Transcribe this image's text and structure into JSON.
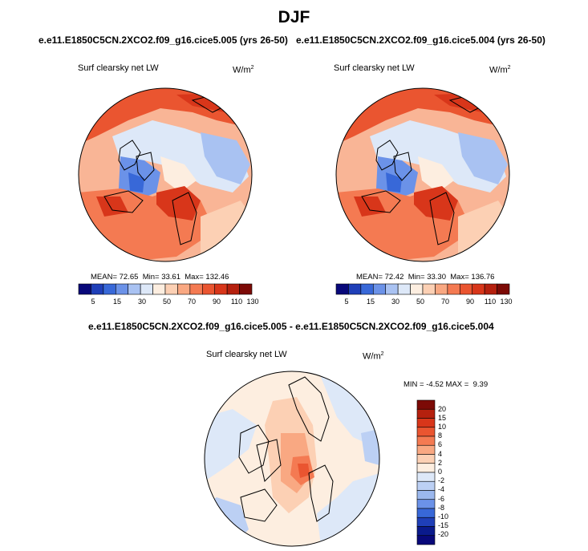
{
  "title": "DJF",
  "panels": [
    {
      "run_title": "e.e11.E1850C5CN.2XCO2.f09_g16.cice5.005 (yrs 26-50)",
      "variable": "Surf clearsky net LW",
      "units": "W/m",
      "units_sup": "2",
      "stats": {
        "mean_label": "MEAN=",
        "mean": "72.65",
        "min_label": "Min=",
        "min": "33.61",
        "max_label": "Max=",
        "max": "132.46"
      },
      "colorbar_ticks": [
        "5",
        "15",
        "30",
        "50",
        "70",
        "90",
        "110",
        "130"
      ]
    },
    {
      "run_title": "e.e11.E1850C5CN.2XCO2.f09_g16.cice5.004 (yrs 26-50)",
      "variable": "Surf clearsky net LW",
      "units": "W/m",
      "units_sup": "2",
      "stats": {
        "mean_label": "MEAN=",
        "mean": "72.42",
        "min_label": "Min=",
        "min": "33.30",
        "max_label": "Max=",
        "max": "136.76"
      },
      "colorbar_ticks": [
        "5",
        "15",
        "30",
        "50",
        "70",
        "90",
        "110",
        "130"
      ]
    }
  ],
  "difference": {
    "run_title": "e.e11.E1850C5CN.2XCO2.f09_g16.cice5.005 - e.e11.E1850C5CN.2XCO2.f09_g16.cice5.004",
    "variable": "Surf clearsky net LW",
    "units": "W/m",
    "units_sup": "2",
    "stats": {
      "min_label": "MIN =",
      "min": "-4.52",
      "max_label": "MAX =",
      "max": "9.39"
    },
    "colorbar_ticks": [
      "20",
      "15",
      "10",
      "8",
      "6",
      "4",
      "2",
      "0",
      "-2",
      "-4",
      "-6",
      "-8",
      "-10",
      "-15",
      "-20"
    ]
  },
  "colors": {
    "abs_scale": [
      "#08087a",
      "#1f3fb8",
      "#3868d8",
      "#6b92e8",
      "#a9c2f2",
      "#dde8f8",
      "#fdeee0",
      "#fcd0b4",
      "#f9a882",
      "#f47a52",
      "#ea5530",
      "#d8361a",
      "#b5200e",
      "#7c0a06"
    ],
    "diff_scale": [
      "#7c0a06",
      "#b5200e",
      "#d8361a",
      "#ea5530",
      "#f47a52",
      "#f9a882",
      "#fcd0b4",
      "#fdeee0",
      "#dde8f8",
      "#bcd0f4",
      "#9bb8ee",
      "#6b92e8",
      "#3868d8",
      "#1f3fb8",
      "#0a1a8c",
      "#08087a"
    ]
  }
}
